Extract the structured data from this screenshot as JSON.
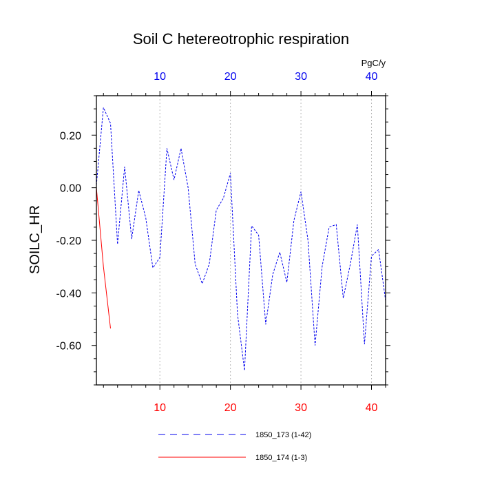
{
  "chart_data": {
    "type": "line",
    "title": "Soil C hetereotrophic respiration",
    "ylabel": "SOILC_HR",
    "units": "PgC/y",
    "xlim": [
      1,
      42
    ],
    "ylim": [
      -0.75,
      0.35
    ],
    "x_ticks": [
      10,
      20,
      30,
      40
    ],
    "y_ticks": [
      0.2,
      0.0,
      -0.2,
      -0.4,
      -0.6
    ],
    "y_tick_labels": [
      "0.20",
      "0.00",
      "-0.20",
      "-0.40",
      "-0.60"
    ],
    "grid": "vertical dotted at major x ticks",
    "series": [
      {
        "name": "1850_173 (1-42)",
        "color": "#0000ee",
        "style": "dashed",
        "x": [
          1,
          2,
          3,
          4,
          5,
          6,
          7,
          8,
          9,
          10,
          11,
          12,
          13,
          14,
          15,
          16,
          17,
          18,
          19,
          20,
          21,
          22,
          23,
          24,
          25,
          26,
          27,
          28,
          29,
          30,
          31,
          32,
          33,
          34,
          35,
          36,
          37,
          38,
          39,
          40,
          41,
          42
        ],
        "values": [
          0.01,
          0.305,
          0.245,
          -0.215,
          0.08,
          -0.195,
          -0.01,
          -0.115,
          -0.305,
          -0.265,
          0.15,
          0.03,
          0.15,
          0.0,
          -0.29,
          -0.365,
          -0.29,
          -0.085,
          -0.04,
          0.055,
          -0.48,
          -0.695,
          -0.145,
          -0.18,
          -0.52,
          -0.33,
          -0.245,
          -0.36,
          -0.125,
          -0.015,
          -0.2,
          -0.6,
          -0.3,
          -0.15,
          -0.14,
          -0.42,
          -0.29,
          -0.14,
          -0.595,
          -0.26,
          -0.235,
          -0.43
        ]
      },
      {
        "name": "1850_174 (1-3)",
        "color": "#ff0000",
        "style": "solid",
        "x": [
          1,
          2,
          3
        ],
        "values": [
          0.0,
          -0.3,
          -0.535
        ]
      }
    ]
  }
}
